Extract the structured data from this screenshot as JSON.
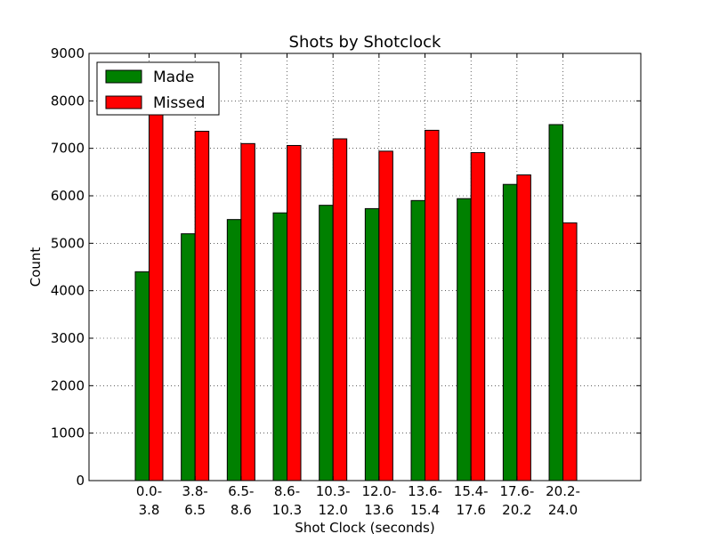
{
  "chart_data": {
    "type": "bar",
    "title": "Shots by Shotclock",
    "xlabel": "Shot Clock (seconds)",
    "ylabel": "Count",
    "ylim": [
      0,
      9000
    ],
    "yticks": [
      "0",
      "1000",
      "2000",
      "3000",
      "4000",
      "5000",
      "6000",
      "7000",
      "8000",
      "9000"
    ],
    "grid": true,
    "legend_position": "top-left",
    "categories": [
      [
        "0.0-",
        "3.8"
      ],
      [
        "3.8-",
        "6.5"
      ],
      [
        "6.5-",
        "8.6"
      ],
      [
        "8.6-",
        "10.3"
      ],
      [
        "10.3-",
        "12.0"
      ],
      [
        "12.0-",
        "13.6"
      ],
      [
        "13.6-",
        "15.4"
      ],
      [
        "15.4-",
        "17.6"
      ],
      [
        "17.6-",
        "20.2"
      ],
      [
        "20.2-",
        "24.0"
      ]
    ],
    "series": [
      {
        "name": "Made",
        "color": "#008000",
        "values": [
          4400,
          5200,
          5500,
          5640,
          5800,
          5730,
          5900,
          5940,
          6240,
          7500
        ]
      },
      {
        "name": "Missed",
        "color": "#ff0000",
        "values": [
          7720,
          7360,
          7100,
          7060,
          7200,
          6940,
          7380,
          6910,
          6440,
          5430
        ]
      }
    ]
  }
}
